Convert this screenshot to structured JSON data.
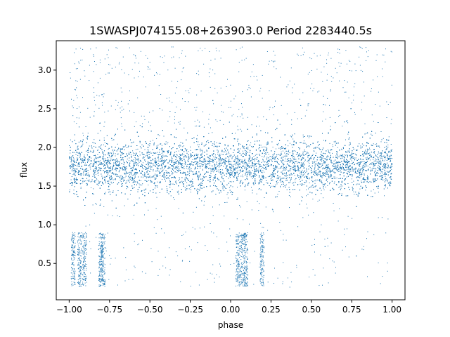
{
  "chart_data": {
    "type": "scatter",
    "title": "1SWASPJ074155.08+263903.0 Period 2283440.5s",
    "xlabel": "phase",
    "ylabel": "flux",
    "xlim": [
      -1.08,
      1.08
    ],
    "ylim": [
      0.03,
      3.38
    ],
    "xticks": [
      -1.0,
      -0.75,
      -0.5,
      -0.25,
      0.0,
      0.25,
      0.5,
      0.75,
      1.0
    ],
    "xtick_labels": [
      "−1.00",
      "−0.75",
      "−0.50",
      "−0.25",
      "0.00",
      "0.25",
      "0.50",
      "0.75",
      "1.00"
    ],
    "yticks": [
      0.5,
      1.0,
      1.5,
      2.0,
      2.5,
      3.0
    ],
    "ytick_labels": [
      "0.5",
      "1.0",
      "1.5",
      "2.0",
      "2.5",
      "3.0"
    ],
    "grid": false,
    "legend": "none",
    "marker_color": "#1f77b4",
    "description": "Phase-folded light curve: dense band of points spanning phase -1 to 1 with flux mostly between about 1.3 and 2.2 (median near 1.75), sparse outliers reaching up to about 3.3; low-flux dips (about 0.2 to 0.9) clustered near phases -0.97, -0.93, -0.80, 0.05, 0.08 and 0.20.",
    "series": [
      {
        "values": [
          [
            -0.998,
            1.76
          ],
          [
            -0.95,
            1.72
          ],
          [
            -0.9,
            1.8
          ],
          [
            -0.85,
            1.7
          ],
          [
            -0.8,
            1.78
          ],
          [
            -0.75,
            1.74
          ],
          [
            -0.7,
            1.81
          ],
          [
            -0.65,
            1.73
          ],
          [
            -0.6,
            1.77
          ],
          [
            -0.55,
            1.75
          ],
          [
            -0.5,
            1.79
          ],
          [
            -0.45,
            1.72
          ],
          [
            -0.4,
            1.76
          ],
          [
            -0.35,
            1.78
          ],
          [
            -0.3,
            1.74
          ],
          [
            -0.25,
            1.77
          ],
          [
            -0.2,
            1.75
          ],
          [
            -0.15,
            1.73
          ],
          [
            -0.1,
            1.78
          ],
          [
            -0.05,
            1.71
          ],
          [
            0.0,
            1.74
          ],
          [
            0.05,
            1.76
          ],
          [
            0.1,
            1.72
          ],
          [
            0.15,
            1.79
          ],
          [
            0.2,
            1.74
          ],
          [
            0.25,
            1.77
          ],
          [
            0.3,
            1.73
          ],
          [
            0.35,
            1.78
          ],
          [
            0.4,
            1.75
          ],
          [
            0.45,
            1.76
          ],
          [
            0.5,
            1.72
          ],
          [
            0.55,
            1.78
          ],
          [
            0.6,
            1.74
          ],
          [
            0.65,
            1.77
          ],
          [
            0.7,
            1.73
          ],
          [
            0.75,
            1.79
          ],
          [
            0.8,
            1.75
          ],
          [
            0.85,
            1.76
          ],
          [
            0.9,
            1.72
          ],
          [
            0.95,
            1.74
          ],
          [
            1.0,
            1.75
          ],
          [
            -0.97,
            0.55
          ],
          [
            -0.93,
            0.5
          ],
          [
            -0.8,
            0.55
          ],
          [
            0.05,
            0.6
          ],
          [
            0.08,
            0.5
          ],
          [
            0.2,
            0.6
          ],
          [
            -0.6,
            3.2
          ],
          [
            -0.3,
            3.25
          ],
          [
            0.45,
            3.2
          ],
          [
            0.8,
            3.3
          ],
          [
            -0.85,
            3.2
          ]
        ]
      }
    ]
  }
}
